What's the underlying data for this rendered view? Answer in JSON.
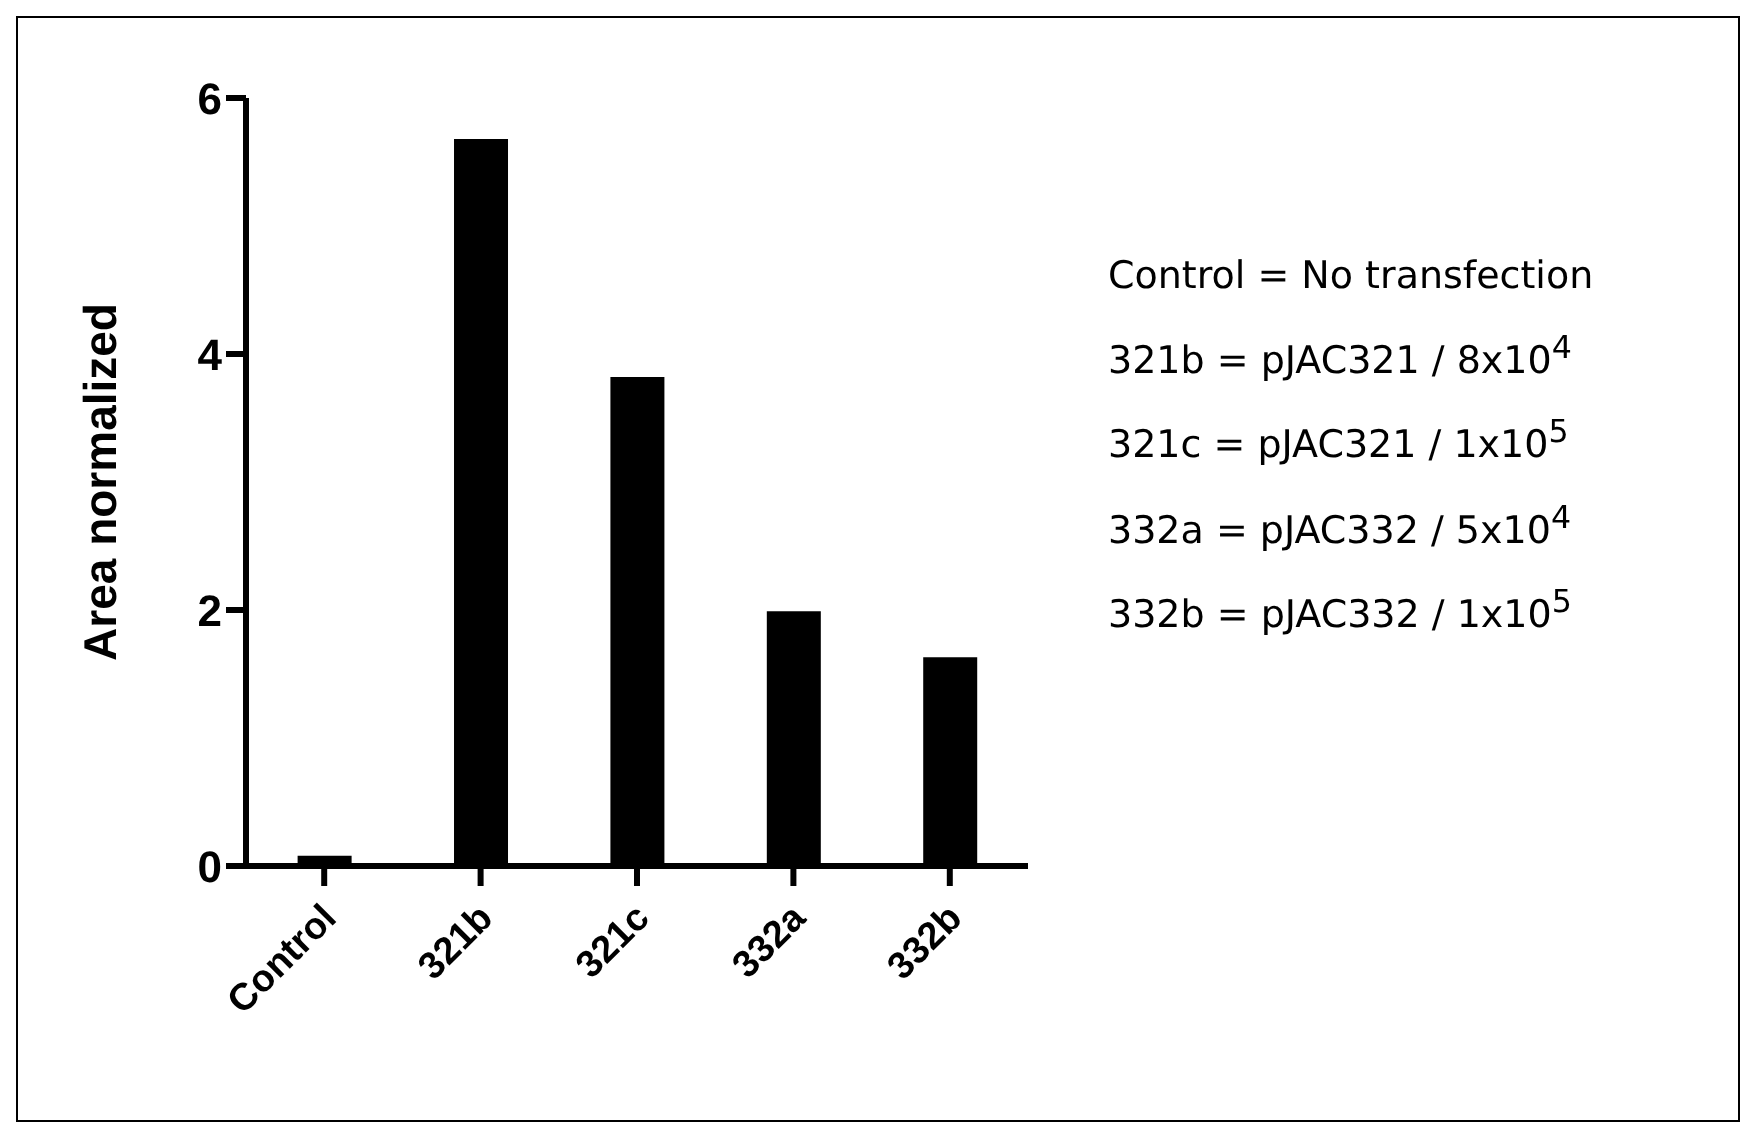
{
  "chart_data": {
    "type": "bar",
    "ylabel": "Area normalized",
    "categories": [
      "Control",
      "321b",
      "321c",
      "332a",
      "332b"
    ],
    "values": [
      0.08,
      5.68,
      3.82,
      1.99,
      1.63
    ],
    "color": "#000000",
    "ylim": [
      0,
      6
    ],
    "yticks": [
      0,
      2,
      4,
      6
    ],
    "grid": false,
    "legend": false,
    "annotations": [
      "Control = No transfection",
      "321b = pJAC321 / 8x10$^{4}$",
      "321c = pJAC321 / 1x10$^{5}$",
      "332a = pJAC332 / 5x10$^{4}$",
      "332b = pJAC332 / 1x10$^{5}$"
    ]
  }
}
